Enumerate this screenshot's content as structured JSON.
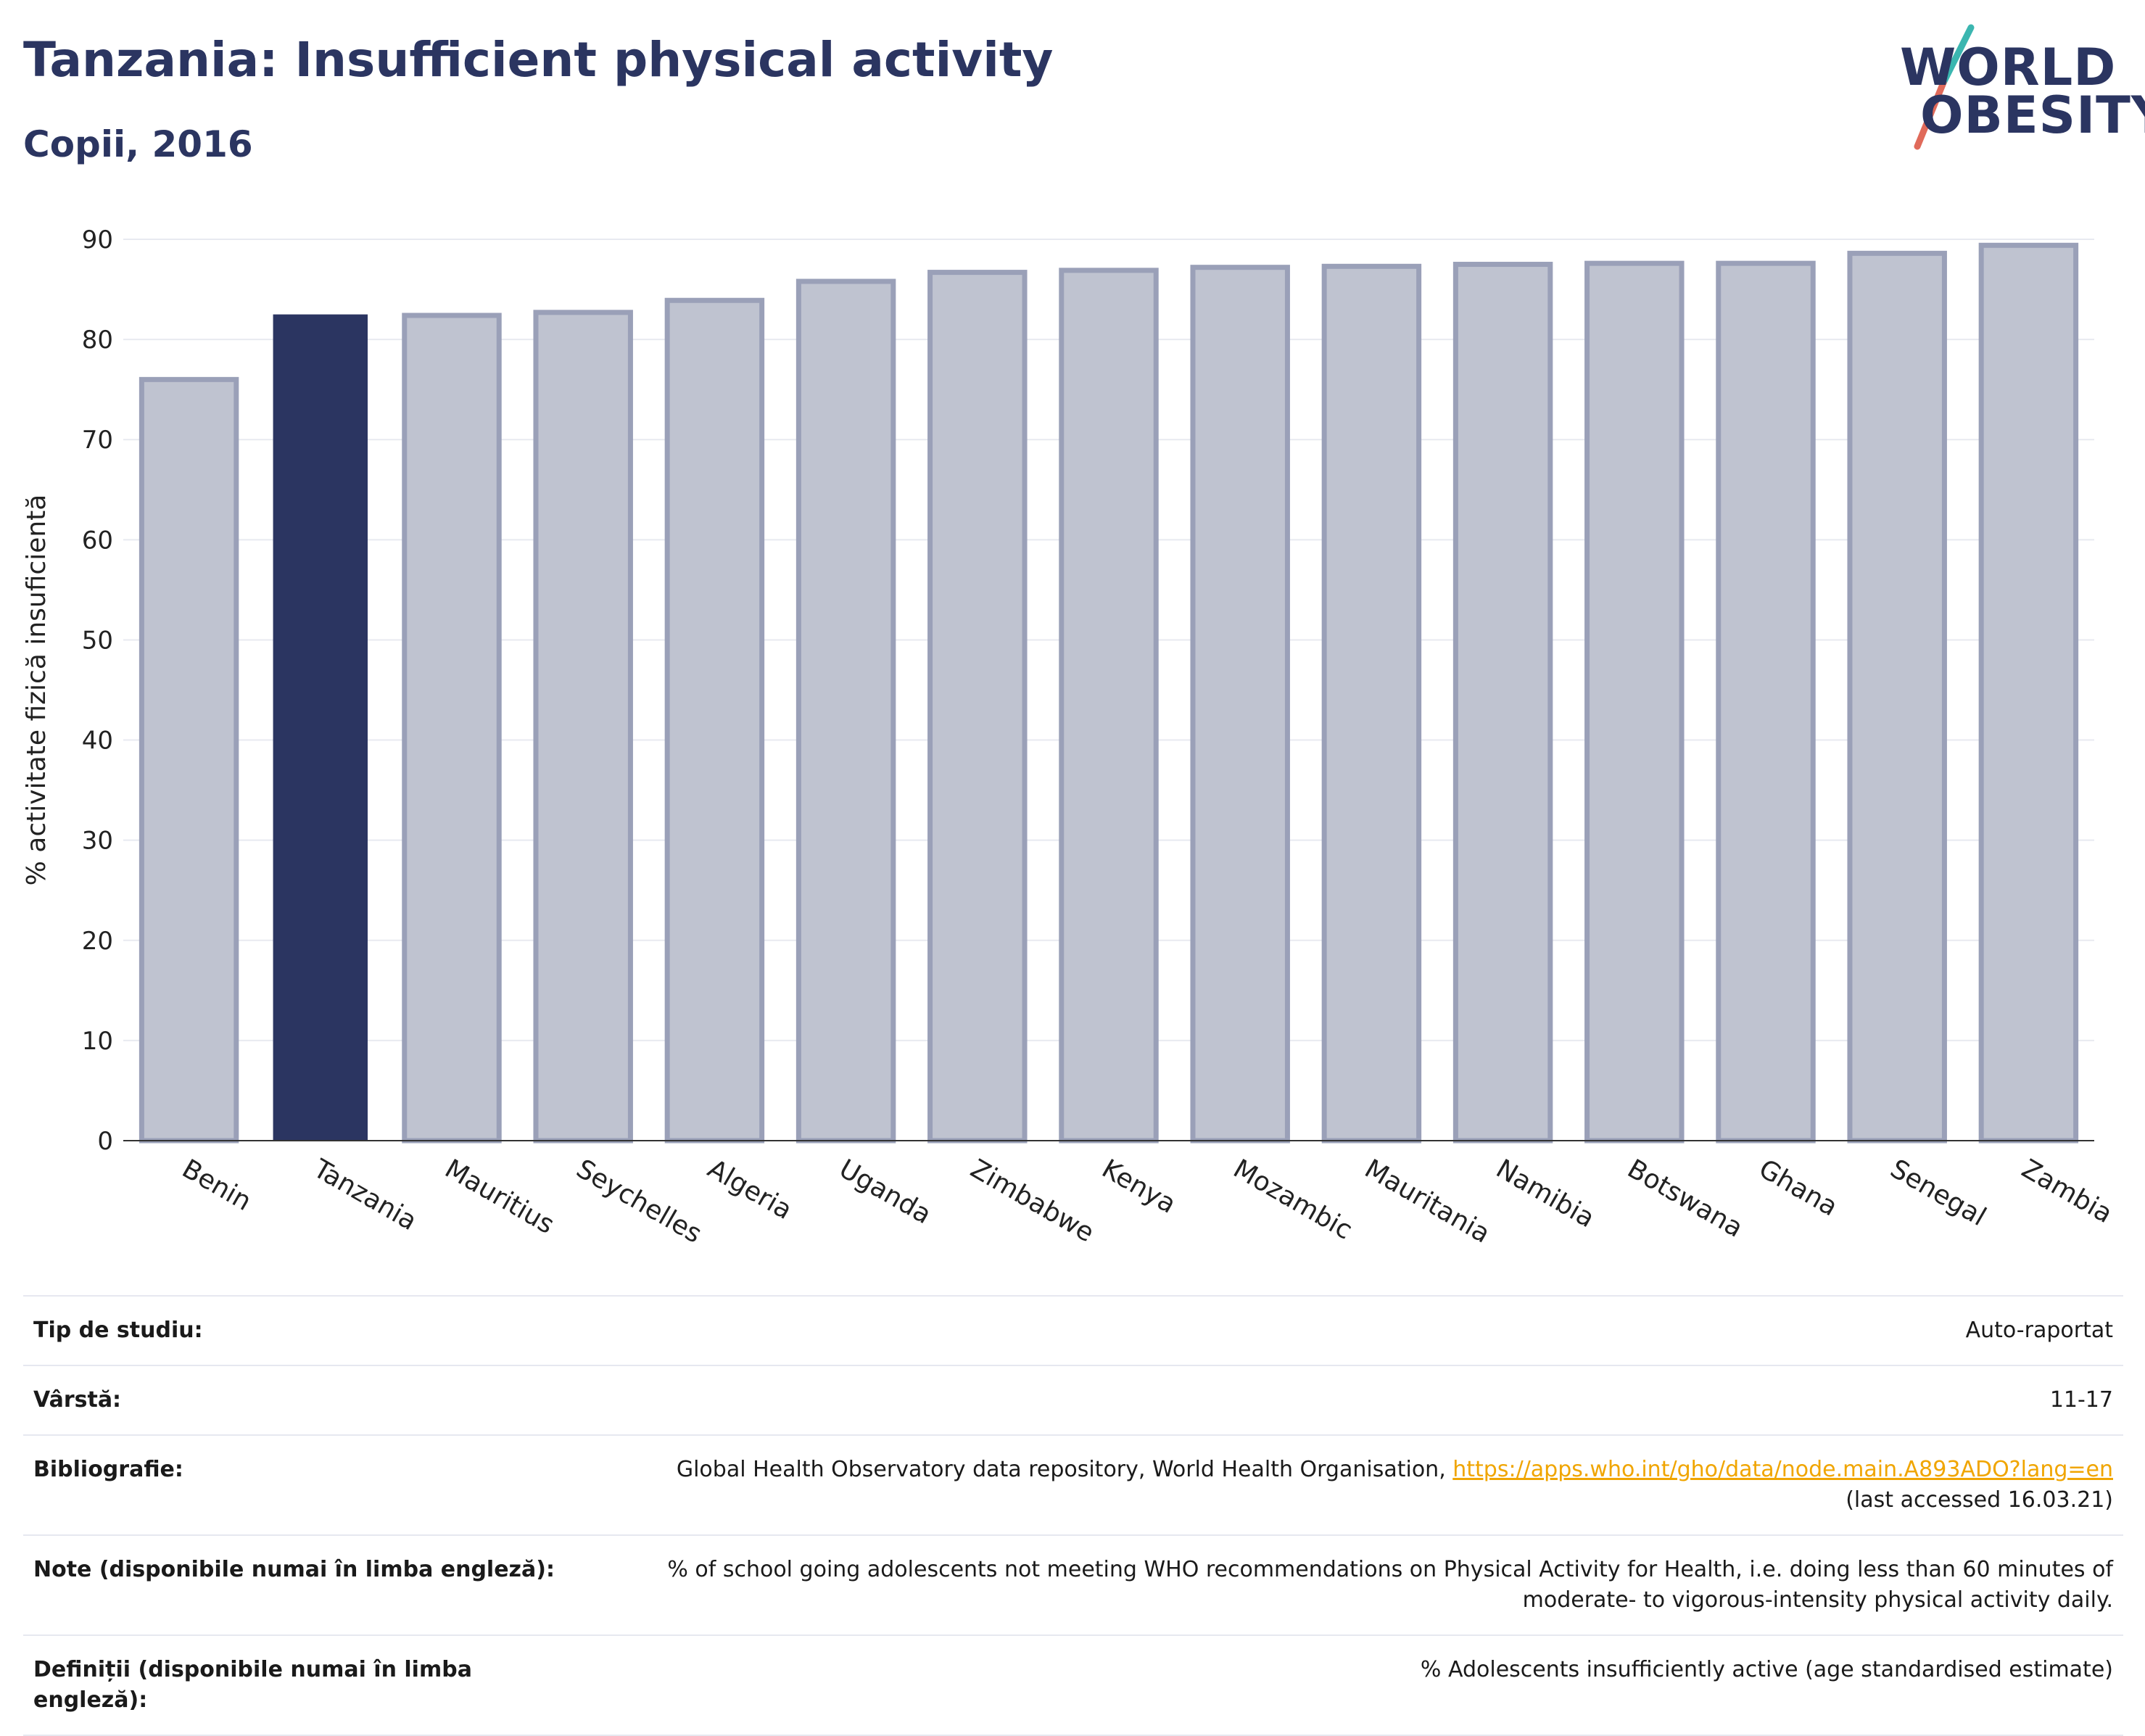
{
  "header": {
    "title": "Tanzania: Insufficient physical activity",
    "subtitle": "Copii, 2016"
  },
  "logo": {
    "line1": "WORLD",
    "line2": "OBESITY",
    "brand_dark": "#2b3561",
    "accent_teal": "#3bb6b0",
    "accent_coral": "#e06a5a"
  },
  "colors": {
    "highlight_bar": "#2b3561",
    "other_bar_fill": "#bfc3d0",
    "other_bar_stroke": "#9aa0b8",
    "link": "#f0a500"
  },
  "chart_data": {
    "type": "bar",
    "ylabel": "% activitate fizică insuficientă",
    "ylim": [
      0,
      90
    ],
    "yticks": [
      0,
      10,
      20,
      30,
      40,
      50,
      60,
      70,
      80,
      90
    ],
    "grid": true,
    "highlight": "Tanzania",
    "categories": [
      "Benin",
      "Tanzania",
      "Mauritius",
      "Seychelles",
      "Algeria",
      "Uganda",
      "Zimbabwe",
      "Kenya",
      "Mozambic",
      "Mauritania",
      "Namibia",
      "Botswana",
      "Ghana",
      "Senegal",
      "Zambia"
    ],
    "values": [
      76.0,
      82.5,
      82.4,
      82.7,
      83.9,
      85.8,
      86.7,
      86.9,
      87.2,
      87.3,
      87.5,
      87.6,
      87.6,
      88.6,
      89.4
    ]
  },
  "info": {
    "study_type_label": "Tip de studiu:",
    "study_type_value": "Auto-raportat",
    "age_label": "Vârstă:",
    "age_value": "11-17",
    "bibliography_label": "Bibliografie:",
    "bibliography_text": "Global Health Observatory data repository, World Health Organisation, ",
    "bibliography_link": "https://apps.who.int/gho/data/node.main.A893ADO?lang=en",
    "bibliography_accessed": "(last accessed 16.03.21)",
    "notes_label": "Note (disponibile numai în limba engleză):",
    "notes_line1": "% of school going adolescents not meeting WHO recommendations on Physical Activity for Health, i.e. doing less than 60 minutes of",
    "notes_line2": "moderate- to vigorous-intensity physical activity daily.",
    "definitions_label_line1": "Definiții (disponibile numai în limba",
    "definitions_label_line2": "engleză):",
    "definitions_value": "% Adolescents insufficiently active (age standardised estimate)"
  }
}
